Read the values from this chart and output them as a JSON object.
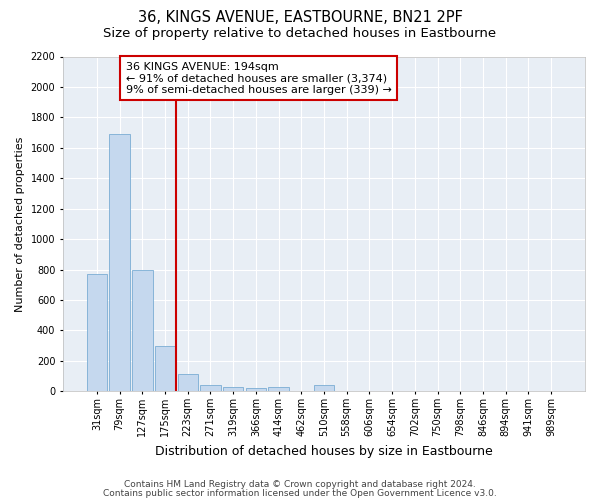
{
  "title": "36, KINGS AVENUE, EASTBOURNE, BN21 2PF",
  "subtitle": "Size of property relative to detached houses in Eastbourne",
  "xlabel": "Distribution of detached houses by size in Eastbourne",
  "ylabel": "Number of detached properties",
  "categories": [
    "31sqm",
    "79sqm",
    "127sqm",
    "175sqm",
    "223sqm",
    "271sqm",
    "319sqm",
    "366sqm",
    "414sqm",
    "462sqm",
    "510sqm",
    "558sqm",
    "606sqm",
    "654sqm",
    "702sqm",
    "750sqm",
    "798sqm",
    "846sqm",
    "894sqm",
    "941sqm",
    "989sqm"
  ],
  "values": [
    770,
    1690,
    800,
    300,
    110,
    40,
    30,
    20,
    30,
    0,
    40,
    0,
    0,
    0,
    0,
    0,
    0,
    0,
    0,
    0,
    0
  ],
  "bar_color": "#c5d8ee",
  "bar_edgecolor": "#7aadd4",
  "vline_color": "#cc0000",
  "vline_x": 3.5,
  "annotation_text_line1": "36 KINGS AVENUE: 194sqm",
  "annotation_text_line2": "← 91% of detached houses are smaller (3,374)",
  "annotation_text_line3": "9% of semi-detached houses are larger (339) →",
  "annotation_box_color": "#cc0000",
  "ylim": [
    0,
    2200
  ],
  "yticks": [
    0,
    200,
    400,
    600,
    800,
    1000,
    1200,
    1400,
    1600,
    1800,
    2000,
    2200
  ],
  "footnote1": "Contains HM Land Registry data © Crown copyright and database right 2024.",
  "footnote2": "Contains public sector information licensed under the Open Government Licence v3.0.",
  "background_color": "#e8eef5",
  "grid_color": "#ffffff",
  "title_fontsize": 10.5,
  "subtitle_fontsize": 9.5,
  "xlabel_fontsize": 9,
  "ylabel_fontsize": 8,
  "tick_fontsize": 7,
  "annotation_fontsize": 8,
  "footnote_fontsize": 6.5
}
